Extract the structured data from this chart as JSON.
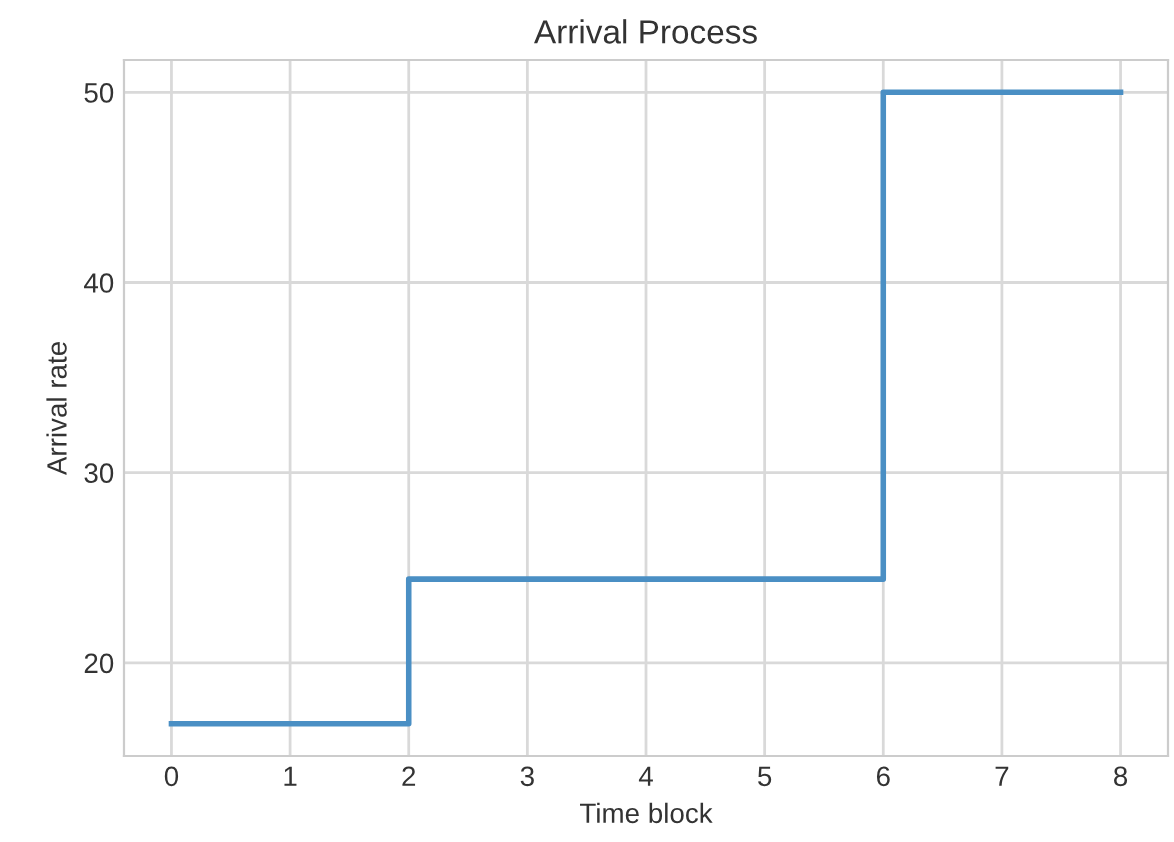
{
  "chart_data": {
    "type": "step",
    "title": "Arrival Process",
    "xlabel": "Time block",
    "ylabel": "Arrival rate",
    "x": [
      0,
      2,
      6,
      8
    ],
    "series": [
      {
        "color": "#4a8fc4",
        "values": [
          16.8,
          24.4,
          50,
          50
        ]
      }
    ],
    "xlim": [
      -0.4,
      8.4
    ],
    "xticks": [
      0,
      1,
      2,
      3,
      4,
      5,
      6,
      7,
      8
    ],
    "ylim": [
      15.1,
      51.7
    ],
    "yticks": [
      20,
      30,
      40,
      50
    ],
    "grid": true,
    "line_style": "solid"
  }
}
